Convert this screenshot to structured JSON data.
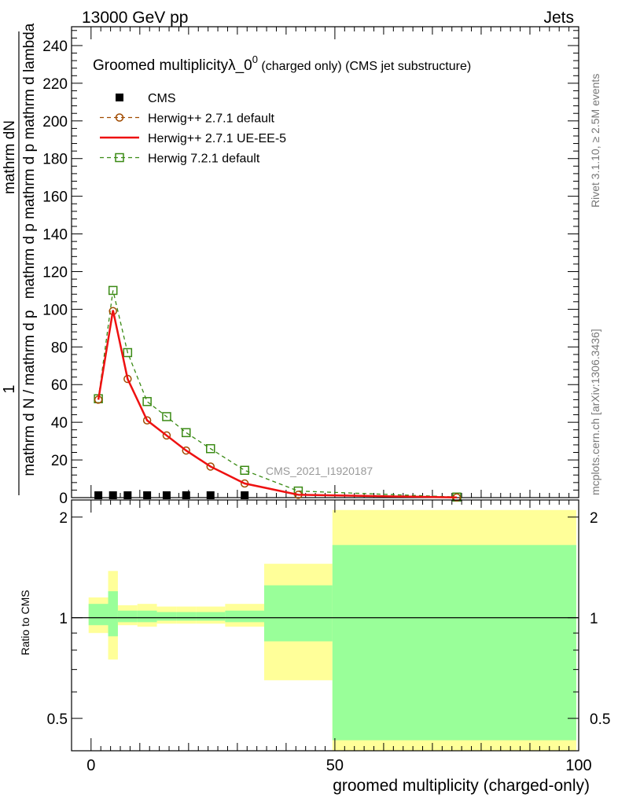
{
  "header": {
    "left": "13000 GeV pp",
    "right": "Jets"
  },
  "side_labels": {
    "rivet": "Rivet 3.1.10, ≥ 2.5M events",
    "mcplots": "mcplots.cern.ch [arXiv:1306.3436]"
  },
  "chart_data": [
    {
      "type": "line",
      "title_main": "Groomed multiplicityλ_0",
      "title_sup": "0",
      "title_rest": " (charged only) (CMS jet substructure)",
      "ylabel_line1": "1",
      "ylabel_line2": "mathrm d N / mathrm d p",
      "ylabel_line3": "mathrm dN",
      "ylabel_line4": "mathrm d p  mathrm d p  mathrm d lambda",
      "watermark": "CMS_2021_I1920187",
      "ylim": [
        0,
        250
      ],
      "xlim": [
        -4,
        100
      ],
      "yticks": [
        "0",
        "20",
        "40",
        "60",
        "80",
        "100",
        "120",
        "140",
        "160",
        "180",
        "200",
        "220",
        "240"
      ],
      "legend_position": "top-left",
      "series": [
        {
          "name": "CMS",
          "color": "#000000",
          "marker": "square-filled",
          "x": [
            1.5,
            4.5,
            7.5,
            11.5,
            15.5,
            19.5,
            24.5,
            31.5
          ],
          "y": [
            0.5,
            0.5,
            0.5,
            0.5,
            0.5,
            0.5,
            0.5,
            0.5
          ]
        },
        {
          "name": "Herwig++ 2.7.1 default",
          "color": "#a04b00",
          "marker": "circle-open",
          "dashed": true,
          "x": [
            1.5,
            4.5,
            7.5,
            11.5,
            15.5,
            19.5,
            24.5,
            31.5,
            42.5,
            75
          ],
          "y": [
            52,
            99,
            63,
            41,
            33,
            25,
            16.5,
            7.5,
            1.5,
            0.1
          ]
        },
        {
          "name": "Herwig++ 2.7.1 UE-EE-5",
          "color": "#ee1111",
          "marker": "none",
          "dashed": false,
          "x": [
            1.5,
            4.5,
            7.5,
            11.5,
            15.5,
            19.5,
            24.5,
            31.5,
            42.5,
            75
          ],
          "y": [
            52,
            99.5,
            63,
            41,
            33,
            25,
            16.5,
            7.5,
            1.5,
            0.1
          ]
        },
        {
          "name": "Herwig 7.2.1 default",
          "color": "#3a8a14",
          "marker": "square-open",
          "dashed": true,
          "x": [
            1.5,
            4.5,
            7.5,
            11.5,
            15.5,
            19.5,
            24.5,
            31.5,
            42.5,
            75
          ],
          "y": [
            52.5,
            110,
            77,
            51,
            43,
            34.5,
            26,
            14.5,
            3.5,
            0.3
          ]
        }
      ]
    },
    {
      "type": "area",
      "ylabel": "Ratio to CMS",
      "xlabel": "groomed multiplicity (charged-only)",
      "xlim": [
        -4,
        100
      ],
      "ylim": [
        0.4,
        2.25
      ],
      "yticks": [
        "0.5",
        "1",
        "2"
      ],
      "xticks": [
        "0",
        "50",
        "100"
      ],
      "reference_line": 1,
      "bands": [
        {
          "x0": -0.5,
          "x1": 3.5,
          "yellow": [
            0.9,
            1.15
          ],
          "green": [
            0.95,
            1.1
          ]
        },
        {
          "x0": 3.5,
          "x1": 5.5,
          "yellow": [
            0.75,
            1.38
          ],
          "green": [
            0.88,
            1.2
          ]
        },
        {
          "x0": 5.5,
          "x1": 9.5,
          "yellow": [
            0.95,
            1.09
          ],
          "green": [
            0.97,
            1.05
          ]
        },
        {
          "x0": 9.5,
          "x1": 13.5,
          "yellow": [
            0.94,
            1.1
          ],
          "green": [
            0.97,
            1.05
          ]
        },
        {
          "x0": 13.5,
          "x1": 17.5,
          "yellow": [
            0.96,
            1.08
          ],
          "green": [
            0.98,
            1.04
          ]
        },
        {
          "x0": 17.5,
          "x1": 21.5,
          "yellow": [
            0.96,
            1.08
          ],
          "green": [
            0.98,
            1.04
          ]
        },
        {
          "x0": 21.5,
          "x1": 27.5,
          "yellow": [
            0.96,
            1.08
          ],
          "green": [
            0.98,
            1.04
          ]
        },
        {
          "x0": 27.5,
          "x1": 35.5,
          "yellow": [
            0.94,
            1.1
          ],
          "green": [
            0.97,
            1.05
          ]
        },
        {
          "x0": 35.5,
          "x1": 49.5,
          "yellow": [
            0.65,
            1.45
          ],
          "green": [
            0.85,
            1.25
          ]
        },
        {
          "x0": 49.5,
          "x1": 99.5,
          "yellow": [
            0.4,
            2.1
          ],
          "green": [
            0.43,
            1.65
          ]
        }
      ]
    }
  ]
}
